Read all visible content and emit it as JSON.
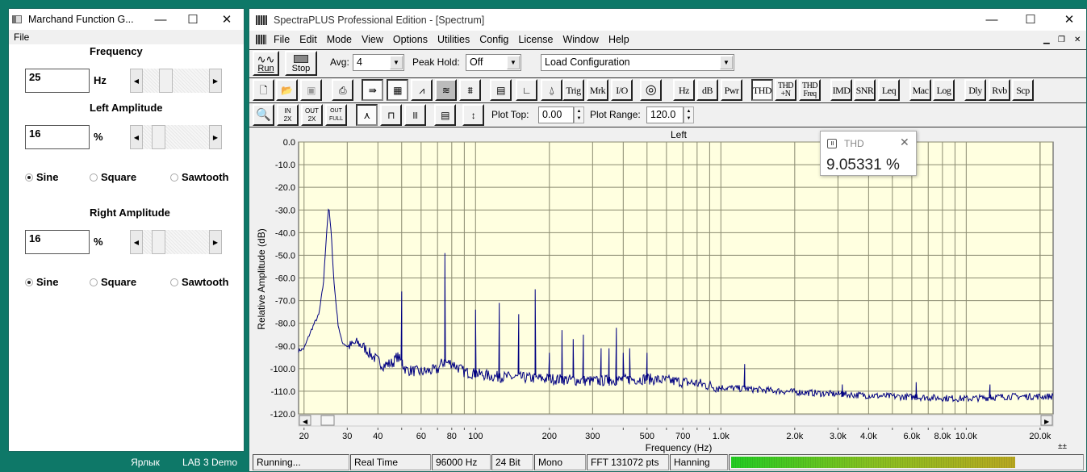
{
  "desktop": {
    "icons": [
      "Ярлык",
      "LAB 3 Demo"
    ]
  },
  "marchand": {
    "title": "Marchand Function G...",
    "menu": [
      "File"
    ],
    "frequency": {
      "label": "Frequency",
      "value": "25",
      "unit": "Hz",
      "slider_fraction": 0.35
    },
    "left": {
      "label": "Left Amplitude",
      "value": "16",
      "unit": "%",
      "slider_fraction": 0.16,
      "waveforms": [
        "Sine",
        "Square",
        "Sawtooth"
      ],
      "selected": "Sine"
    },
    "right": {
      "label": "Right Amplitude",
      "value": "16",
      "unit": "%",
      "slider_fraction": 0.16,
      "waveforms": [
        "Sine",
        "Square",
        "Sawtooth"
      ],
      "selected": "Sine"
    }
  },
  "spectra": {
    "title": "SpectraPLUS Professional Edition - [Spectrum]",
    "menu": [
      "File",
      "Edit",
      "Mode",
      "View",
      "Options",
      "Utilities",
      "Config",
      "License",
      "Window",
      "Help"
    ],
    "toolbar1": {
      "run": "Run",
      "stop": "Stop",
      "avg_label": "Avg:",
      "avg_value": "4",
      "peak_label": "Peak Hold:",
      "peak_value": "Off",
      "config_value": "Load Configuration"
    },
    "toolbar2": [
      "Trig",
      "Mrk",
      "I/O",
      "Hz",
      "dB",
      "Pwr",
      "THD",
      "THD +N",
      "THD Freq",
      "IMD",
      "SNR",
      "Leq",
      "Mac",
      "Log",
      "Dly",
      "Rvb",
      "Scp"
    ],
    "toolbar2_icons": [
      "new-file-icon",
      "open-folder-icon",
      "save-disk-icon",
      "printer-icon",
      "signal-flow-icon",
      "spectrum-grid-icon",
      "sawtooth-icon",
      "spectrogram-icon",
      "3d-surface-icon",
      "window-layout-icon",
      "axis-icon",
      "probe-icon",
      "sine-generator-icon"
    ],
    "toolbar3": {
      "icons": [
        "zoom-icon",
        "zoom-in-2x-icon",
        "zoom-out-2x-icon",
        "zoom-out-full-icon",
        "line-plot-icon",
        "step-plot-icon",
        "bar-plot-icon",
        "window-layout-icon",
        "autoscale-icon"
      ],
      "zoom_in": [
        "IN",
        "2X"
      ],
      "zoom_out": [
        "OUT",
        "2X"
      ],
      "zoom_full": [
        "OUT",
        "FULL"
      ],
      "plot_top_label": "Plot Top:",
      "plot_top": "0.00",
      "plot_range_label": "Plot Range:",
      "plot_range": "120.0"
    },
    "thd_popup": {
      "title": "THD",
      "value": "9.05331 %"
    },
    "status": [
      "Running...",
      "Real Time",
      "96000 Hz",
      "24 Bit",
      "Mono",
      "FFT 131072 pts",
      "Hanning"
    ],
    "level_meter_fraction": 0.81
  },
  "chart_data": {
    "type": "line",
    "title": "Left",
    "xlabel": "Frequency (Hz)",
    "ylabel": "Relative Amplitude (dB)",
    "xscale": "log",
    "xlim": [
      19,
      22600
    ],
    "ylim": [
      -120,
      0
    ],
    "grid": true,
    "line_color": "#000080",
    "plot_background": "#ffffe0",
    "yticks": [
      "0.0",
      "-10.0",
      "-20.0",
      "-30.0",
      "-40.0",
      "-50.0",
      "-60.0",
      "-70.0",
      "-80.0",
      "-90.0",
      "-100.0",
      "-110.0",
      "-120.0"
    ],
    "xticks": [
      {
        "f": 20,
        "label": "20"
      },
      {
        "f": 30,
        "label": "30"
      },
      {
        "f": 40,
        "label": "40"
      },
      {
        "f": 60,
        "label": "60"
      },
      {
        "f": 80,
        "label": "80"
      },
      {
        "f": 100,
        "label": "100"
      },
      {
        "f": 200,
        "label": "200"
      },
      {
        "f": 300,
        "label": "300"
      },
      {
        "f": 500,
        "label": "500"
      },
      {
        "f": 700,
        "label": "700"
      },
      {
        "f": 1000,
        "label": "1.0k"
      },
      {
        "f": 2000,
        "label": "2.0k"
      },
      {
        "f": 3000,
        "label": "3.0k"
      },
      {
        "f": 4000,
        "label": "4.0k"
      },
      {
        "f": 6000,
        "label": "6.0k"
      },
      {
        "f": 8000,
        "label": "8.0k"
      },
      {
        "f": 10000,
        "label": "10.0k"
      },
      {
        "f": 20000,
        "label": "20.0k"
      }
    ],
    "noise_floor": [
      [
        19,
        -92
      ],
      [
        20,
        -91
      ],
      [
        21,
        -85
      ],
      [
        22,
        -80
      ],
      [
        23,
        -76
      ],
      [
        24,
        -62
      ],
      [
        24.7,
        -40
      ],
      [
        25.2,
        -28
      ],
      [
        25.8,
        -40
      ],
      [
        26.5,
        -62
      ],
      [
        27.5,
        -80
      ],
      [
        28.5,
        -88
      ],
      [
        30,
        -90
      ],
      [
        33,
        -88
      ],
      [
        35,
        -90
      ],
      [
        38,
        -94
      ],
      [
        42,
        -98
      ],
      [
        46,
        -97
      ],
      [
        48,
        -94
      ],
      [
        52,
        -100
      ],
      [
        60,
        -101
      ],
      [
        70,
        -100
      ],
      [
        73,
        -97
      ],
      [
        80,
        -97
      ],
      [
        90,
        -101
      ],
      [
        120,
        -103
      ],
      [
        200,
        -104
      ],
      [
        300,
        -105
      ],
      [
        500,
        -104
      ],
      [
        800,
        -106
      ],
      [
        1000,
        -108
      ],
      [
        2000,
        -110
      ],
      [
        3000,
        -111
      ],
      [
        5000,
        -112
      ],
      [
        10000,
        -113
      ],
      [
        15000,
        -112
      ],
      [
        22600,
        -112
      ]
    ],
    "harmonic_peaks": [
      [
        50,
        -66
      ],
      [
        75,
        -49
      ],
      [
        100,
        -74
      ],
      [
        125,
        -71
      ],
      [
        150,
        -76
      ],
      [
        175,
        -65
      ],
      [
        200,
        -93
      ],
      [
        225,
        -83
      ],
      [
        250,
        -87
      ],
      [
        275,
        -85
      ],
      [
        325,
        -91
      ],
      [
        350,
        -91
      ],
      [
        375,
        -82
      ],
      [
        400,
        -93
      ],
      [
        425,
        -91
      ],
      [
        500,
        -93
      ],
      [
        1250,
        -98
      ],
      [
        3125,
        -107
      ],
      [
        6250,
        -106
      ],
      [
        12500,
        -107
      ]
    ]
  }
}
